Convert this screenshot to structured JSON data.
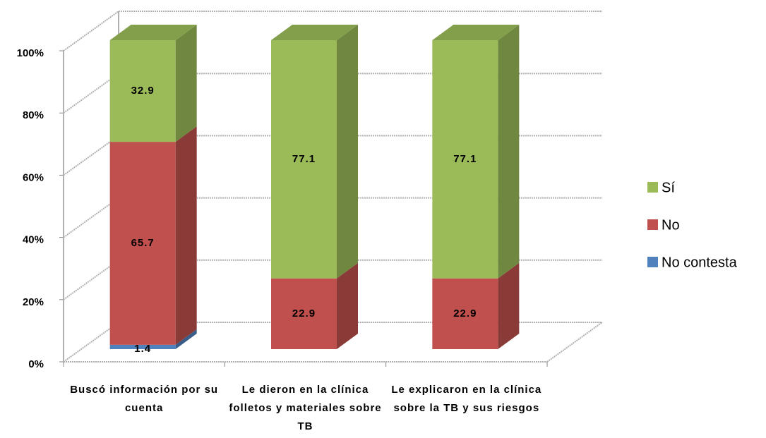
{
  "chart_data": {
    "type": "bar",
    "stacked": true,
    "categories": [
      "Buscó información por su cuenta",
      "Le dieron en la clínica folletos y materiales sobre TB",
      "Le explicaron en la clínica sobre la TB y sus riesgos"
    ],
    "series": [
      {
        "name": "No contesta",
        "color": "#4f81bd",
        "values": [
          1.4,
          null,
          null
        ]
      },
      {
        "name": "No",
        "color": "#c0504d",
        "values": [
          65.7,
          22.9,
          22.9
        ]
      },
      {
        "name": "Sí",
        "color": "#9bbb59",
        "values": [
          32.9,
          77.1,
          77.1
        ]
      }
    ],
    "ylim": [
      0,
      100
    ],
    "yticks": [
      {
        "value": 0,
        "label": "0%"
      },
      {
        "value": 20,
        "label": "20%"
      },
      {
        "value": 40,
        "label": "40%"
      },
      {
        "value": 60,
        "label": "60%"
      },
      {
        "value": 80,
        "label": "80%"
      },
      {
        "value": 100,
        "label": "100%"
      }
    ],
    "grid": true,
    "legend": "right"
  }
}
